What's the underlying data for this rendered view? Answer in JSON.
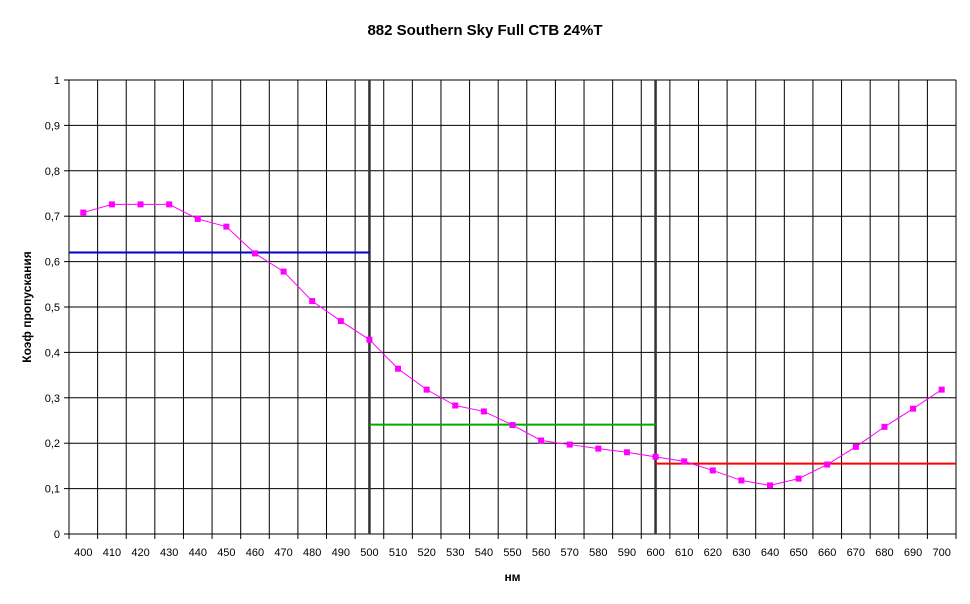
{
  "chart_data": {
    "type": "line",
    "title": "882 Southern Sky Full CTB 24%T",
    "xlabel": "нм",
    "ylabel": "Коэф пропускания",
    "xlim": [
      400,
      700
    ],
    "ylim": [
      0,
      1
    ],
    "x_ticks": [
      400,
      410,
      420,
      430,
      440,
      450,
      460,
      470,
      480,
      490,
      500,
      510,
      520,
      530,
      540,
      550,
      560,
      570,
      580,
      590,
      600,
      610,
      620,
      630,
      640,
      650,
      660,
      670,
      680,
      690,
      700
    ],
    "y_ticks": [
      0,
      0.1,
      0.2,
      0.3,
      0.4,
      0.5,
      0.6,
      0.7,
      0.8,
      0.9,
      1
    ],
    "y_tick_labels": [
      "0",
      "0,1",
      "0,2",
      "0,3",
      "0,4",
      "0,5",
      "0,6",
      "0,7",
      "0,8",
      "0,9",
      "1"
    ],
    "grid": true,
    "series": [
      {
        "x": [
          400,
          410,
          420,
          430,
          440,
          450,
          460,
          470,
          480,
          490,
          500,
          510,
          520,
          530,
          540,
          550,
          560,
          570,
          580,
          590,
          600,
          610,
          620,
          630,
          640,
          650,
          660,
          670,
          680,
          690,
          700
        ],
        "values": [
          0.708,
          0.726,
          0.726,
          0.726,
          0.694,
          0.677,
          0.618,
          0.578,
          0.513,
          0.469,
          0.428,
          0.364,
          0.318,
          0.283,
          0.27,
          0.24,
          0.206,
          0.197,
          0.188,
          0.18,
          0.17,
          0.16,
          0.14,
          0.118,
          0.107,
          0.122,
          0.153,
          0.192,
          0.236,
          0.276,
          0.318
        ],
        "color": "#ff00ff",
        "marker": "square"
      }
    ],
    "band_averages": [
      {
        "x_start": 400,
        "x_end": 500,
        "value": 0.62,
        "color": "#0000cc"
      },
      {
        "x_start": 500,
        "x_end": 600,
        "value": 0.241,
        "color": "#00aa00"
      },
      {
        "x_start": 600,
        "x_end": 700,
        "value": 0.155,
        "color": "#ff0000"
      }
    ],
    "band_dividers": [
      500,
      600
    ]
  }
}
